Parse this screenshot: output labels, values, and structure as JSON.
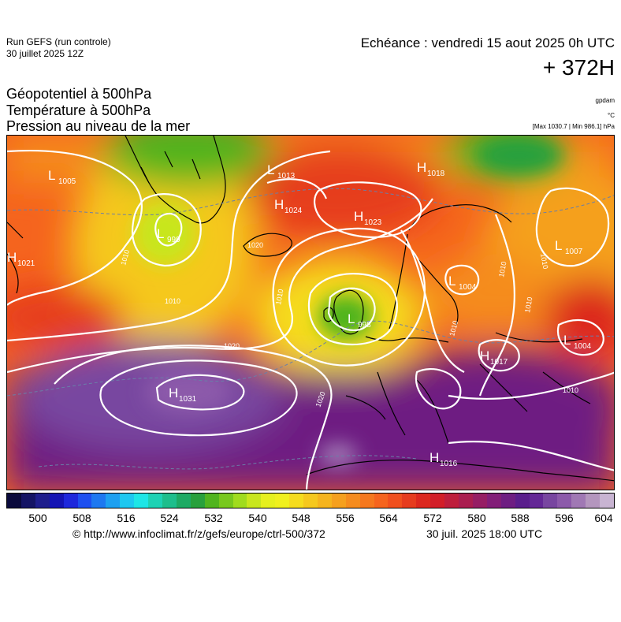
{
  "header": {
    "run_name": "Run GEFS (run controle)",
    "run_date": "30 juillet 2025 12Z",
    "valid_time": "Echéance : vendredi 15 aout 2025 0h UTC",
    "lead_time": "+ 372H"
  },
  "titles": {
    "line1": "Géopotentiel à 500hPa",
    "line2": "Température à 500hPa",
    "line3": "Pression au niveau de la mer"
  },
  "units": {
    "geopotential": "gpdam",
    "temperature": "°C",
    "pressure_range": "[Max 1030.7 | Min 986.1] hPa"
  },
  "pressure_centers": [
    {
      "type": "L",
      "value": "1005"
    },
    {
      "type": "L",
      "value": "1013"
    },
    {
      "type": "H",
      "value": "1018"
    },
    {
      "type": "H",
      "value": "1024"
    },
    {
      "type": "H",
      "value": "1023"
    },
    {
      "type": "L",
      "value": "999"
    },
    {
      "type": "H",
      "value": "1021"
    },
    {
      "type": "L",
      "value": "1007"
    },
    {
      "type": "L",
      "value": "998"
    },
    {
      "type": "L",
      "value": "1004"
    },
    {
      "type": "H",
      "value": "1017"
    },
    {
      "type": "L",
      "value": "1004"
    },
    {
      "type": "H",
      "value": "1031"
    },
    {
      "type": "H",
      "value": "1016"
    }
  ],
  "isobar_labels": [
    "1010",
    "1020",
    "1010",
    "1010",
    "1020",
    "1010",
    "1010",
    "1020",
    "1010",
    "1010",
    "1010"
  ],
  "colorbar": {
    "colors": [
      "#0a0a3c",
      "#141464",
      "#1e1e8c",
      "#1414b4",
      "#1e28dc",
      "#1e50f0",
      "#1e78f0",
      "#1ea0f0",
      "#1ec8f0",
      "#1ee6e6",
      "#1ed2b4",
      "#1ebe8c",
      "#1eaa64",
      "#28a03c",
      "#50b41e",
      "#78c81e",
      "#a0dc1e",
      "#c8e61e",
      "#e6f01e",
      "#f0f01e",
      "#f5dc1e",
      "#f5c81e",
      "#f5b41e",
      "#f5a01e",
      "#f58c1e",
      "#f5781e",
      "#f5641e",
      "#f0501e",
      "#e63c1e",
      "#dc281e",
      "#d21e28",
      "#be1e3c",
      "#aa1e50",
      "#961e64",
      "#821e78",
      "#6e1e82",
      "#5a1e8c",
      "#642896",
      "#7846a0",
      "#8c5aaa",
      "#a078b4",
      "#b496be",
      "#c8b4d2"
    ],
    "tick_labels": [
      "500",
      "508",
      "516",
      "524",
      "532",
      "540",
      "548",
      "556",
      "564",
      "572",
      "580",
      "588",
      "596",
      "604"
    ]
  },
  "footer": {
    "url": "© http://www.infoclimat.fr/z/gefs/europe/ctrl-500/372",
    "generated": "30 juil. 2025 18:00 UTC"
  }
}
